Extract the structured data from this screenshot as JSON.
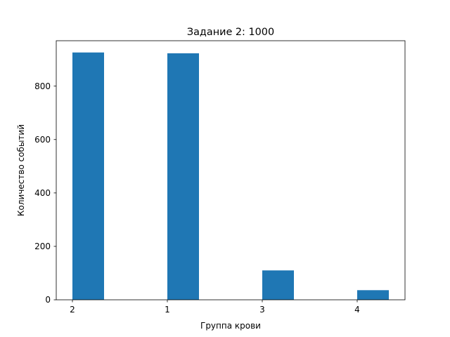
{
  "chart_data": {
    "type": "bar",
    "title": "Задание 2: 1000",
    "xlabel": "Группа крови",
    "ylabel": "Количество событий",
    "categories": [
      "2",
      "1",
      "3",
      "4"
    ],
    "values": [
      926,
      923,
      110,
      36
    ],
    "ylim": [
      0,
      970
    ],
    "yticks": [
      0,
      200,
      400,
      600,
      800
    ],
    "grid": false,
    "bar_color": "#1f77b4"
  }
}
